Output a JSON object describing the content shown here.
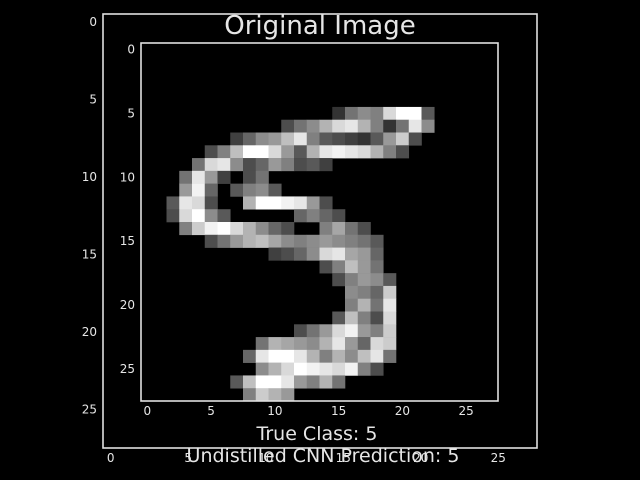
{
  "title": "Original Image",
  "caption_line1": "True Class: 5",
  "caption_line2": "Undistilled CNN Prediction: 5",
  "colors": {
    "background": "#000000",
    "frame": "#e0e0e0",
    "text": "#e6e6e6"
  },
  "chart_data": [
    {
      "type": "heatmap",
      "title": "Original Image",
      "colormap": "gray",
      "grid": false,
      "xlim": [
        0,
        27
      ],
      "ylim": [
        27,
        0
      ],
      "xticks": [
        0,
        5,
        10,
        15,
        20,
        25
      ],
      "yticks": [
        0,
        5,
        10,
        15,
        20,
        25
      ]
    },
    {
      "type": "heatmap",
      "colormap": "gray",
      "grid": false,
      "xlim": [
        0,
        27
      ],
      "ylim": [
        27,
        0
      ],
      "xticks": [
        0,
        5,
        10,
        15,
        20,
        25
      ],
      "yticks": [
        0,
        5,
        10,
        15,
        20,
        25
      ],
      "pixels": [
        {
          "r": 5,
          "c": 15,
          "v": 0.2
        },
        {
          "r": 5,
          "c": 16,
          "v": 0.45
        },
        {
          "r": 5,
          "c": 17,
          "v": 0.55
        },
        {
          "r": 5,
          "c": 18,
          "v": 0.5
        },
        {
          "r": 5,
          "c": 19,
          "v": 0.85
        },
        {
          "r": 5,
          "c": 20,
          "v": 1.0
        },
        {
          "r": 5,
          "c": 21,
          "v": 1.0
        },
        {
          "r": 5,
          "c": 22,
          "v": 0.35
        },
        {
          "r": 6,
          "c": 11,
          "v": 0.3
        },
        {
          "r": 6,
          "c": 12,
          "v": 0.45
        },
        {
          "r": 6,
          "c": 13,
          "v": 0.55
        },
        {
          "r": 6,
          "c": 14,
          "v": 0.7
        },
        {
          "r": 6,
          "c": 15,
          "v": 0.85
        },
        {
          "r": 6,
          "c": 16,
          "v": 0.9
        },
        {
          "r": 6,
          "c": 17,
          "v": 0.7
        },
        {
          "r": 6,
          "c": 18,
          "v": 0.5
        },
        {
          "r": 6,
          "c": 19,
          "v": 0.2
        },
        {
          "r": 6,
          "c": 20,
          "v": 0.45
        },
        {
          "r": 6,
          "c": 21,
          "v": 0.9
        },
        {
          "r": 6,
          "c": 22,
          "v": 0.55
        },
        {
          "r": 7,
          "c": 7,
          "v": 0.25
        },
        {
          "r": 7,
          "c": 8,
          "v": 0.4
        },
        {
          "r": 7,
          "c": 9,
          "v": 0.55
        },
        {
          "r": 7,
          "c": 10,
          "v": 0.6
        },
        {
          "r": 7,
          "c": 11,
          "v": 0.75
        },
        {
          "r": 7,
          "c": 12,
          "v": 0.9
        },
        {
          "r": 7,
          "c": 13,
          "v": 0.5
        },
        {
          "r": 7,
          "c": 14,
          "v": 0.35
        },
        {
          "r": 7,
          "c": 15,
          "v": 0.3
        },
        {
          "r": 7,
          "c": 16,
          "v": 0.25
        },
        {
          "r": 7,
          "c": 17,
          "v": 0.2
        },
        {
          "r": 7,
          "c": 18,
          "v": 0.35
        },
        {
          "r": 7,
          "c": 19,
          "v": 0.6
        },
        {
          "r": 7,
          "c": 20,
          "v": 0.8
        },
        {
          "r": 7,
          "c": 21,
          "v": 0.3
        },
        {
          "r": 8,
          "c": 5,
          "v": 0.3
        },
        {
          "r": 8,
          "c": 6,
          "v": 0.5
        },
        {
          "r": 8,
          "c": 7,
          "v": 0.75
        },
        {
          "r": 8,
          "c": 8,
          "v": 1.0
        },
        {
          "r": 8,
          "c": 9,
          "v": 1.0
        },
        {
          "r": 8,
          "c": 10,
          "v": 0.85
        },
        {
          "r": 8,
          "c": 11,
          "v": 0.6
        },
        {
          "r": 8,
          "c": 12,
          "v": 0.35
        },
        {
          "r": 8,
          "c": 13,
          "v": 0.7
        },
        {
          "r": 8,
          "c": 14,
          "v": 0.9
        },
        {
          "r": 8,
          "c": 15,
          "v": 0.95
        },
        {
          "r": 8,
          "c": 16,
          "v": 0.9
        },
        {
          "r": 8,
          "c": 17,
          "v": 0.85
        },
        {
          "r": 8,
          "c": 18,
          "v": 0.7
        },
        {
          "r": 8,
          "c": 19,
          "v": 0.5
        },
        {
          "r": 8,
          "c": 20,
          "v": 0.3
        },
        {
          "r": 9,
          "c": 4,
          "v": 0.45
        },
        {
          "r": 9,
          "c": 5,
          "v": 0.85
        },
        {
          "r": 9,
          "c": 6,
          "v": 0.9
        },
        {
          "r": 9,
          "c": 7,
          "v": 0.55
        },
        {
          "r": 9,
          "c": 8,
          "v": 0.3
        },
        {
          "r": 9,
          "c": 9,
          "v": 0.4
        },
        {
          "r": 9,
          "c": 10,
          "v": 0.6
        },
        {
          "r": 9,
          "c": 11,
          "v": 0.5
        },
        {
          "r": 9,
          "c": 12,
          "v": 0.3
        },
        {
          "r": 9,
          "c": 13,
          "v": 0.35
        },
        {
          "r": 9,
          "c": 14,
          "v": 0.25
        },
        {
          "r": 10,
          "c": 3,
          "v": 0.45
        },
        {
          "r": 10,
          "c": 4,
          "v": 0.9
        },
        {
          "r": 10,
          "c": 5,
          "v": 0.6
        },
        {
          "r": 10,
          "c": 6,
          "v": 0.25
        },
        {
          "r": 10,
          "c": 8,
          "v": 0.3
        },
        {
          "r": 10,
          "c": 9,
          "v": 0.45
        },
        {
          "r": 11,
          "c": 3,
          "v": 0.6
        },
        {
          "r": 11,
          "c": 4,
          "v": 0.95
        },
        {
          "r": 11,
          "c": 5,
          "v": 0.4
        },
        {
          "r": 11,
          "c": 7,
          "v": 0.35
        },
        {
          "r": 11,
          "c": 8,
          "v": 0.5
        },
        {
          "r": 11,
          "c": 9,
          "v": 0.55
        },
        {
          "r": 11,
          "c": 10,
          "v": 0.35
        },
        {
          "r": 12,
          "c": 2,
          "v": 0.35
        },
        {
          "r": 12,
          "c": 3,
          "v": 0.9
        },
        {
          "r": 12,
          "c": 4,
          "v": 0.85
        },
        {
          "r": 12,
          "c": 5,
          "v": 0.3
        },
        {
          "r": 12,
          "c": 8,
          "v": 0.7
        },
        {
          "r": 12,
          "c": 9,
          "v": 1.0
        },
        {
          "r": 12,
          "c": 10,
          "v": 1.0
        },
        {
          "r": 12,
          "c": 11,
          "v": 0.95
        },
        {
          "r": 12,
          "c": 12,
          "v": 0.9
        },
        {
          "r": 12,
          "c": 13,
          "v": 0.6
        },
        {
          "r": 12,
          "c": 14,
          "v": 0.3
        },
        {
          "r": 13,
          "c": 2,
          "v": 0.3
        },
        {
          "r": 13,
          "c": 3,
          "v": 0.85
        },
        {
          "r": 13,
          "c": 4,
          "v": 1.0
        },
        {
          "r": 13,
          "c": 5,
          "v": 0.55
        },
        {
          "r": 13,
          "c": 6,
          "v": 0.35
        },
        {
          "r": 13,
          "c": 12,
          "v": 0.4
        },
        {
          "r": 13,
          "c": 13,
          "v": 0.5
        },
        {
          "r": 13,
          "c": 14,
          "v": 0.4
        },
        {
          "r": 13,
          "c": 15,
          "v": 0.3
        },
        {
          "r": 14,
          "c": 3,
          "v": 0.5
        },
        {
          "r": 14,
          "c": 4,
          "v": 0.8
        },
        {
          "r": 14,
          "c": 5,
          "v": 0.95
        },
        {
          "r": 14,
          "c": 6,
          "v": 1.0
        },
        {
          "r": 14,
          "c": 7,
          "v": 0.85
        },
        {
          "r": 14,
          "c": 8,
          "v": 0.7
        },
        {
          "r": 14,
          "c": 9,
          "v": 0.55
        },
        {
          "r": 14,
          "c": 10,
          "v": 0.4
        },
        {
          "r": 14,
          "c": 11,
          "v": 0.3
        },
        {
          "r": 14,
          "c": 14,
          "v": 0.5
        },
        {
          "r": 14,
          "c": 15,
          "v": 0.65
        },
        {
          "r": 14,
          "c": 16,
          "v": 0.45
        },
        {
          "r": 14,
          "c": 17,
          "v": 0.3
        },
        {
          "r": 15,
          "c": 5,
          "v": 0.3
        },
        {
          "r": 15,
          "c": 6,
          "v": 0.45
        },
        {
          "r": 15,
          "c": 7,
          "v": 0.6
        },
        {
          "r": 15,
          "c": 8,
          "v": 0.7
        },
        {
          "r": 15,
          "c": 9,
          "v": 0.75
        },
        {
          "r": 15,
          "c": 10,
          "v": 0.65
        },
        {
          "r": 15,
          "c": 11,
          "v": 0.55
        },
        {
          "r": 15,
          "c": 12,
          "v": 0.5
        },
        {
          "r": 15,
          "c": 13,
          "v": 0.55
        },
        {
          "r": 15,
          "c": 14,
          "v": 0.6
        },
        {
          "r": 15,
          "c": 15,
          "v": 0.55
        },
        {
          "r": 15,
          "c": 16,
          "v": 0.5
        },
        {
          "r": 15,
          "c": 17,
          "v": 0.45
        },
        {
          "r": 15,
          "c": 18,
          "v": 0.35
        },
        {
          "r": 16,
          "c": 10,
          "v": 0.25
        },
        {
          "r": 16,
          "c": 11,
          "v": 0.3
        },
        {
          "r": 16,
          "c": 12,
          "v": 0.4
        },
        {
          "r": 16,
          "c": 13,
          "v": 0.55
        },
        {
          "r": 16,
          "c": 14,
          "v": 0.85
        },
        {
          "r": 16,
          "c": 15,
          "v": 0.9
        },
        {
          "r": 16,
          "c": 16,
          "v": 0.65
        },
        {
          "r": 16,
          "c": 17,
          "v": 0.6
        },
        {
          "r": 16,
          "c": 18,
          "v": 0.4
        },
        {
          "r": 17,
          "c": 14,
          "v": 0.3
        },
        {
          "r": 17,
          "c": 15,
          "v": 0.5
        },
        {
          "r": 17,
          "c": 16,
          "v": 0.75
        },
        {
          "r": 17,
          "c": 17,
          "v": 0.6
        },
        {
          "r": 17,
          "c": 18,
          "v": 0.45
        },
        {
          "r": 18,
          "c": 15,
          "v": 0.3
        },
        {
          "r": 18,
          "c": 16,
          "v": 0.5
        },
        {
          "r": 18,
          "c": 17,
          "v": 0.6
        },
        {
          "r": 18,
          "c": 18,
          "v": 0.55
        },
        {
          "r": 18,
          "c": 19,
          "v": 0.35
        },
        {
          "r": 19,
          "c": 16,
          "v": 0.55
        },
        {
          "r": 19,
          "c": 17,
          "v": 0.5
        },
        {
          "r": 19,
          "c": 18,
          "v": 0.4
        },
        {
          "r": 19,
          "c": 19,
          "v": 0.8
        },
        {
          "r": 20,
          "c": 16,
          "v": 0.5
        },
        {
          "r": 20,
          "c": 17,
          "v": 0.7
        },
        {
          "r": 20,
          "c": 18,
          "v": 0.45
        },
        {
          "r": 20,
          "c": 19,
          "v": 0.9
        },
        {
          "r": 21,
          "c": 15,
          "v": 0.35
        },
        {
          "r": 21,
          "c": 16,
          "v": 0.75
        },
        {
          "r": 21,
          "c": 17,
          "v": 0.5
        },
        {
          "r": 21,
          "c": 18,
          "v": 0.3
        },
        {
          "r": 21,
          "c": 19,
          "v": 0.85
        },
        {
          "r": 22,
          "c": 12,
          "v": 0.3
        },
        {
          "r": 22,
          "c": 13,
          "v": 0.45
        },
        {
          "r": 22,
          "c": 14,
          "v": 0.6
        },
        {
          "r": 22,
          "c": 15,
          "v": 0.85
        },
        {
          "r": 22,
          "c": 16,
          "v": 0.95
        },
        {
          "r": 22,
          "c": 17,
          "v": 0.6
        },
        {
          "r": 22,
          "c": 18,
          "v": 0.5
        },
        {
          "r": 22,
          "c": 19,
          "v": 0.8
        },
        {
          "r": 23,
          "c": 9,
          "v": 0.45
        },
        {
          "r": 23,
          "c": 10,
          "v": 0.7
        },
        {
          "r": 23,
          "c": 11,
          "v": 0.65
        },
        {
          "r": 23,
          "c": 12,
          "v": 0.6
        },
        {
          "r": 23,
          "c": 13,
          "v": 0.55
        },
        {
          "r": 23,
          "c": 14,
          "v": 0.7
        },
        {
          "r": 23,
          "c": 15,
          "v": 0.9
        },
        {
          "r": 23,
          "c": 16,
          "v": 0.6
        },
        {
          "r": 23,
          "c": 17,
          "v": 0.4
        },
        {
          "r": 23,
          "c": 18,
          "v": 0.85
        },
        {
          "r": 23,
          "c": 19,
          "v": 0.8
        },
        {
          "r": 24,
          "c": 8,
          "v": 0.4
        },
        {
          "r": 24,
          "c": 9,
          "v": 0.9
        },
        {
          "r": 24,
          "c": 10,
          "v": 1.0
        },
        {
          "r": 24,
          "c": 11,
          "v": 1.0
        },
        {
          "r": 24,
          "c": 12,
          "v": 0.9
        },
        {
          "r": 24,
          "c": 13,
          "v": 0.7
        },
        {
          "r": 24,
          "c": 14,
          "v": 0.5
        },
        {
          "r": 24,
          "c": 15,
          "v": 0.7
        },
        {
          "r": 24,
          "c": 16,
          "v": 0.55
        },
        {
          "r": 24,
          "c": 17,
          "v": 0.75
        },
        {
          "r": 24,
          "c": 18,
          "v": 0.9
        },
        {
          "r": 24,
          "c": 19,
          "v": 0.45
        },
        {
          "r": 25,
          "c": 9,
          "v": 0.55
        },
        {
          "r": 25,
          "c": 10,
          "v": 0.7
        },
        {
          "r": 25,
          "c": 11,
          "v": 0.85
        },
        {
          "r": 25,
          "c": 12,
          "v": 1.0
        },
        {
          "r": 25,
          "c": 13,
          "v": 0.95
        },
        {
          "r": 25,
          "c": 14,
          "v": 0.9
        },
        {
          "r": 25,
          "c": 15,
          "v": 0.85
        },
        {
          "r": 25,
          "c": 16,
          "v": 0.95
        },
        {
          "r": 25,
          "c": 17,
          "v": 0.5
        },
        {
          "r": 25,
          "c": 18,
          "v": 0.3
        },
        {
          "r": 26,
          "c": 7,
          "v": 0.35
        },
        {
          "r": 26,
          "c": 8,
          "v": 0.75
        },
        {
          "r": 26,
          "c": 9,
          "v": 1.0
        },
        {
          "r": 26,
          "c": 10,
          "v": 1.0
        },
        {
          "r": 26,
          "c": 11,
          "v": 0.9
        },
        {
          "r": 26,
          "c": 12,
          "v": 0.6
        },
        {
          "r": 26,
          "c": 13,
          "v": 0.5
        },
        {
          "r": 26,
          "c": 14,
          "v": 0.7
        },
        {
          "r": 26,
          "c": 15,
          "v": 0.45
        },
        {
          "r": 27,
          "c": 8,
          "v": 0.5
        },
        {
          "r": 27,
          "c": 9,
          "v": 0.8
        },
        {
          "r": 27,
          "c": 10,
          "v": 0.7
        },
        {
          "r": 27,
          "c": 11,
          "v": 0.6
        }
      ]
    }
  ]
}
